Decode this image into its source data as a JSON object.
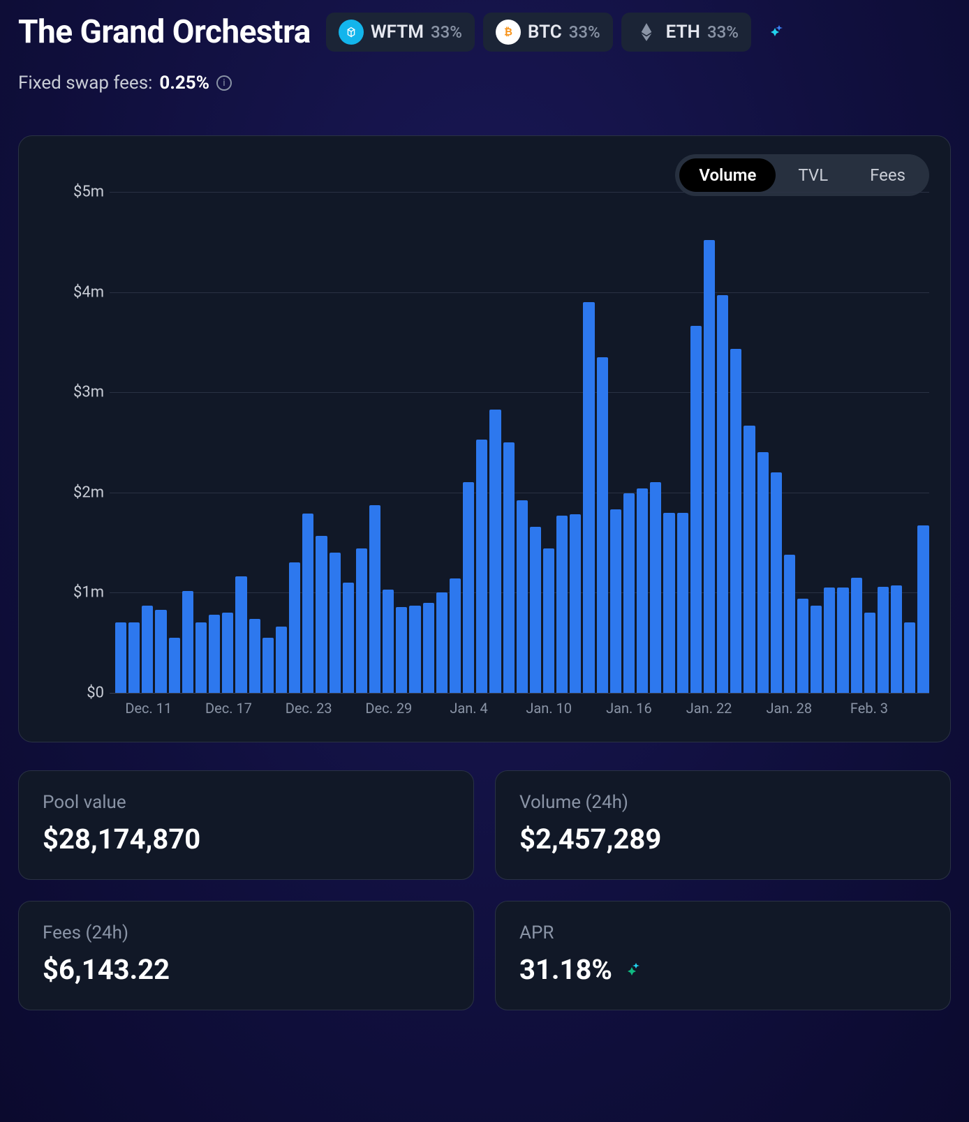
{
  "header": {
    "title": "The Grand Orchestra",
    "tokens": [
      {
        "symbol": "WFTM",
        "pct": "33%",
        "icon_bg": "#13b5ec",
        "icon_fg": "#ffffff"
      },
      {
        "symbol": "BTC",
        "pct": "33%",
        "icon_bg": "#ffffff",
        "icon_fg": "#f7931a"
      },
      {
        "symbol": "ETH",
        "pct": "33%",
        "icon_bg": "transparent",
        "icon_fg": "#8a94a6"
      }
    ]
  },
  "swap_fee": {
    "label": "Fixed swap fees:",
    "value": "0.25%"
  },
  "chart": {
    "type": "bar",
    "tabs": [
      "Volume",
      "TVL",
      "Fees"
    ],
    "active_tab": "Volume",
    "bar_color": "#2d78ee",
    "background_color": "#111827",
    "grid_color": "#2a3244",
    "ylim": [
      0,
      5000000
    ],
    "ytick_labels": [
      "$0",
      "$1m",
      "$2m",
      "$3m",
      "$4m",
      "$5m"
    ],
    "ytick_values": [
      0,
      1000000,
      2000000,
      3000000,
      4000000,
      5000000
    ],
    "xtick_labels": [
      "Dec. 11",
      "Dec. 17",
      "Dec. 23",
      "Dec. 29",
      "Jan. 4",
      "Jan. 10",
      "Jan. 16",
      "Jan. 22",
      "Jan. 28",
      "Feb. 3"
    ],
    "xtick_indices": [
      2,
      8,
      14,
      20,
      26,
      32,
      38,
      44,
      50,
      56
    ],
    "values": [
      700000,
      700000,
      870000,
      830000,
      550000,
      1020000,
      700000,
      780000,
      800000,
      1160000,
      740000,
      550000,
      660000,
      1300000,
      1790000,
      1570000,
      1400000,
      1100000,
      1440000,
      1870000,
      1030000,
      860000,
      870000,
      900000,
      1000000,
      1140000,
      2100000,
      2530000,
      2830000,
      2500000,
      1920000,
      1660000,
      1440000,
      1770000,
      1780000,
      3900000,
      3350000,
      1830000,
      1990000,
      2040000,
      2100000,
      1800000,
      1800000,
      3660000,
      4520000,
      3970000,
      3430000,
      2670000,
      2400000,
      2200000,
      1380000,
      940000,
      870000,
      1050000,
      1050000,
      1150000,
      800000,
      1060000,
      1070000,
      700000,
      1670000
    ],
    "label_fontsize": 22,
    "label_color": "#c9cdd6"
  },
  "stats": {
    "pool_value": {
      "label": "Pool value",
      "value": "$28,174,870"
    },
    "volume_24h": {
      "label": "Volume (24h)",
      "value": "$2,457,289"
    },
    "fees_24h": {
      "label": "Fees (24h)",
      "value": "$6,143.22"
    },
    "apr": {
      "label": "APR",
      "value": "31.18%",
      "has_sparkle": true
    }
  },
  "colors": {
    "page_bg": "#100f3d",
    "card_bg": "#111827",
    "card_border": "#2a3244",
    "text_primary": "#ffffff",
    "text_secondary": "#8a94a6",
    "accent_sparkle_a": "#22d3ee",
    "accent_sparkle_b": "#4ade80"
  }
}
